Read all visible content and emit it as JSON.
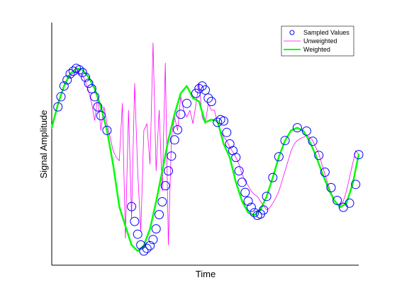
{
  "chart_data": {
    "type": "line",
    "xlabel": "Time",
    "ylabel": "Signal Amplitude",
    "xlim": [
      0,
      1
    ],
    "ylim": [
      -1.8,
      1.8
    ],
    "grid": false,
    "ticks": "none",
    "legend": {
      "placement": "top-right",
      "entries": [
        "Sampled Values",
        "Unweighted",
        "Weighted"
      ]
    },
    "colors": {
      "sampled": "#0000ff",
      "unweighted": "#ff00ff",
      "weighted": "#00ff00"
    },
    "series": [
      {
        "name": "Weighted",
        "style": "thick-line",
        "x": [
          0.0,
          0.02,
          0.04,
          0.06,
          0.08,
          0.1,
          0.12,
          0.14,
          0.16,
          0.18,
          0.2,
          0.22,
          0.24,
          0.26,
          0.28,
          0.3,
          0.32,
          0.34,
          0.36,
          0.38,
          0.4,
          0.42,
          0.44,
          0.46,
          0.48,
          0.5,
          0.52,
          0.54,
          0.56,
          0.58,
          0.6,
          0.62,
          0.64,
          0.66,
          0.68,
          0.7,
          0.72,
          0.74,
          0.76,
          0.78,
          0.8,
          0.82,
          0.84,
          0.86,
          0.88,
          0.9,
          0.92,
          0.94,
          0.96,
          0.98,
          1.0
        ],
        "values": [
          0.24,
          0.59,
          0.86,
          1.04,
          1.12,
          1.1,
          0.99,
          0.82,
          0.55,
          0.2,
          -0.31,
          -0.93,
          -1.22,
          -1.5,
          -1.59,
          -1.51,
          -1.26,
          -0.86,
          -0.4,
          0.06,
          0.44,
          0.75,
          0.86,
          0.68,
          0.63,
          0.32,
          0.36,
          0.34,
          0.0,
          -0.2,
          -0.57,
          -0.85,
          -1.02,
          -1.06,
          -0.98,
          -0.78,
          -0.5,
          -0.19,
          0.05,
          0.2,
          0.24,
          0.19,
          0.04,
          -0.17,
          -0.42,
          -0.65,
          -0.84,
          -0.94,
          -0.88,
          -0.6,
          -0.16
        ]
      },
      {
        "name": "Sampled Values",
        "style": "circle-markers",
        "x": [
          0.02,
          0.03,
          0.04,
          0.05,
          0.06,
          0.07,
          0.08,
          0.09,
          0.1,
          0.11,
          0.12,
          0.13,
          0.14,
          0.15,
          0.16,
          0.18,
          0.26,
          0.27,
          0.28,
          0.29,
          0.3,
          0.31,
          0.32,
          0.33,
          0.34,
          0.35,
          0.36,
          0.37,
          0.38,
          0.39,
          0.4,
          0.41,
          0.42,
          0.44,
          0.47,
          0.48,
          0.49,
          0.5,
          0.51,
          0.52,
          0.54,
          0.55,
          0.56,
          0.57,
          0.58,
          0.59,
          0.6,
          0.61,
          0.62,
          0.63,
          0.64,
          0.65,
          0.66,
          0.67,
          0.68,
          0.69,
          0.7,
          0.72,
          0.74,
          0.76,
          0.8,
          0.83,
          0.85,
          0.87,
          0.89,
          0.91,
          0.93,
          0.95,
          0.97,
          0.99,
          1.0
        ],
        "values": [
          0.55,
          0.7,
          0.86,
          0.95,
          1.04,
          1.08,
          1.12,
          1.1,
          1.06,
          0.99,
          0.9,
          0.82,
          0.7,
          0.55,
          0.42,
          0.2,
          -0.93,
          -1.15,
          -1.34,
          -1.5,
          -1.59,
          -1.55,
          -1.51,
          -1.42,
          -1.26,
          -1.05,
          -0.86,
          -0.62,
          -0.4,
          -0.18,
          0.06,
          0.21,
          0.44,
          0.6,
          0.75,
          0.82,
          0.86,
          0.8,
          0.68,
          0.63,
          0.32,
          0.36,
          0.34,
          0.17,
          0.0,
          -0.1,
          -0.2,
          -0.4,
          -0.57,
          -0.72,
          -0.85,
          -0.94,
          -1.02,
          -1.06,
          -1.04,
          -0.98,
          -0.78,
          -0.5,
          -0.19,
          0.05,
          0.24,
          0.19,
          0.04,
          -0.17,
          -0.42,
          -0.65,
          -0.84,
          -0.94,
          -0.88,
          -0.6,
          -0.16
        ]
      },
      {
        "name": "Unweighted",
        "style": "thin-noisy-line",
        "x": [
          0.0,
          0.01,
          0.02,
          0.03,
          0.04,
          0.05,
          0.06,
          0.07,
          0.08,
          0.09,
          0.1,
          0.11,
          0.12,
          0.13,
          0.14,
          0.15,
          0.16,
          0.17,
          0.18,
          0.19,
          0.2,
          0.21,
          0.22,
          0.23,
          0.24,
          0.25,
          0.26,
          0.27,
          0.28,
          0.29,
          0.3,
          0.31,
          0.32,
          0.33,
          0.34,
          0.35,
          0.36,
          0.37,
          0.38,
          0.39,
          0.4,
          0.41,
          0.42,
          0.43,
          0.44,
          0.45,
          0.46,
          0.47,
          0.48,
          0.49,
          0.5,
          0.51,
          0.52,
          0.53,
          0.54,
          0.55,
          0.56,
          0.57,
          0.58,
          0.59,
          0.6,
          0.61,
          0.62,
          0.63,
          0.64,
          0.65,
          0.66,
          0.67,
          0.68,
          0.69,
          0.7,
          0.71,
          0.72,
          0.73,
          0.74,
          0.75,
          0.76,
          0.77,
          0.78,
          0.79,
          0.8,
          0.81,
          0.82,
          0.83,
          0.84,
          0.85,
          0.86,
          0.87,
          0.88,
          0.89,
          0.9,
          0.91,
          0.92,
          0.93,
          0.94,
          0.95,
          0.96,
          0.97,
          0.98,
          0.99,
          1.0
        ],
        "values": [
          0.22,
          0.42,
          0.6,
          0.75,
          0.85,
          0.95,
          1.0,
          1.05,
          1.08,
          1.05,
          1.02,
          0.92,
          0.78,
          0.6,
          0.35,
          0.7,
          0.2,
          0.55,
          0.3,
          0.1,
          -0.1,
          -0.2,
          -0.25,
          0.6,
          -1.4,
          0.5,
          -1.1,
          0.9,
          -0.4,
          -1.3,
          0.2,
          0.3,
          -0.3,
          1.5,
          -0.4,
          0.5,
          -0.7,
          1.2,
          -1.5,
          0.1,
          0.4,
          0.2,
          0.7,
          0.5,
          0.4,
          0.5,
          0.3,
          0.6,
          0.9,
          0.4,
          0.3,
          0.6,
          0.5,
          0.5,
          0.3,
          0.2,
          0.1,
          0.05,
          -0.05,
          -0.12,
          -0.2,
          -0.3,
          -0.45,
          -0.55,
          -0.62,
          -0.7,
          -0.75,
          -0.78,
          -0.85,
          -0.92,
          -0.98,
          -0.95,
          -0.88,
          -0.8,
          -0.7,
          -0.55,
          -0.4,
          -0.25,
          -0.1,
          0.0,
          0.05,
          0.08,
          0.1,
          0.12,
          0.1,
          0.05,
          -0.05,
          -0.15,
          -0.3,
          -0.45,
          -0.6,
          -0.72,
          -0.82,
          -0.9,
          -0.92,
          -0.85,
          -0.7,
          -0.5,
          -0.3,
          -0.1,
          -0.16
        ]
      }
    ]
  }
}
